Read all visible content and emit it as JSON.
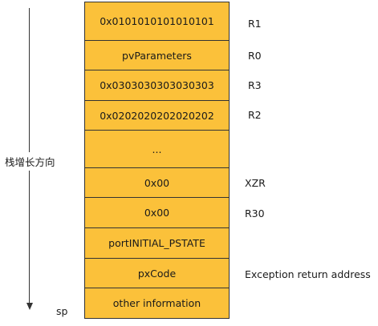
{
  "growth_direction_label": "栈增长方向",
  "sp_label": "sp",
  "stack_cells": [
    {
      "content": "0x0101010101010101",
      "label": "R1"
    },
    {
      "content": "pvParameters",
      "label": "R0"
    },
    {
      "content": "0x0303030303030303",
      "label": "R3"
    },
    {
      "content": "0x0202020202020202",
      "label": "R2"
    },
    {
      "content": "...",
      "label": ""
    },
    {
      "content": "0x00",
      "label": "XZR"
    },
    {
      "content": "0x00",
      "label": "R30"
    },
    {
      "content": "portINITIAL_PSTATE",
      "label": ""
    },
    {
      "content": "pxCode",
      "label": "Exception return address"
    },
    {
      "content": "other information",
      "label": ""
    }
  ],
  "colors": {
    "cell_fill": "#fbc13a",
    "border": "#333333"
  }
}
